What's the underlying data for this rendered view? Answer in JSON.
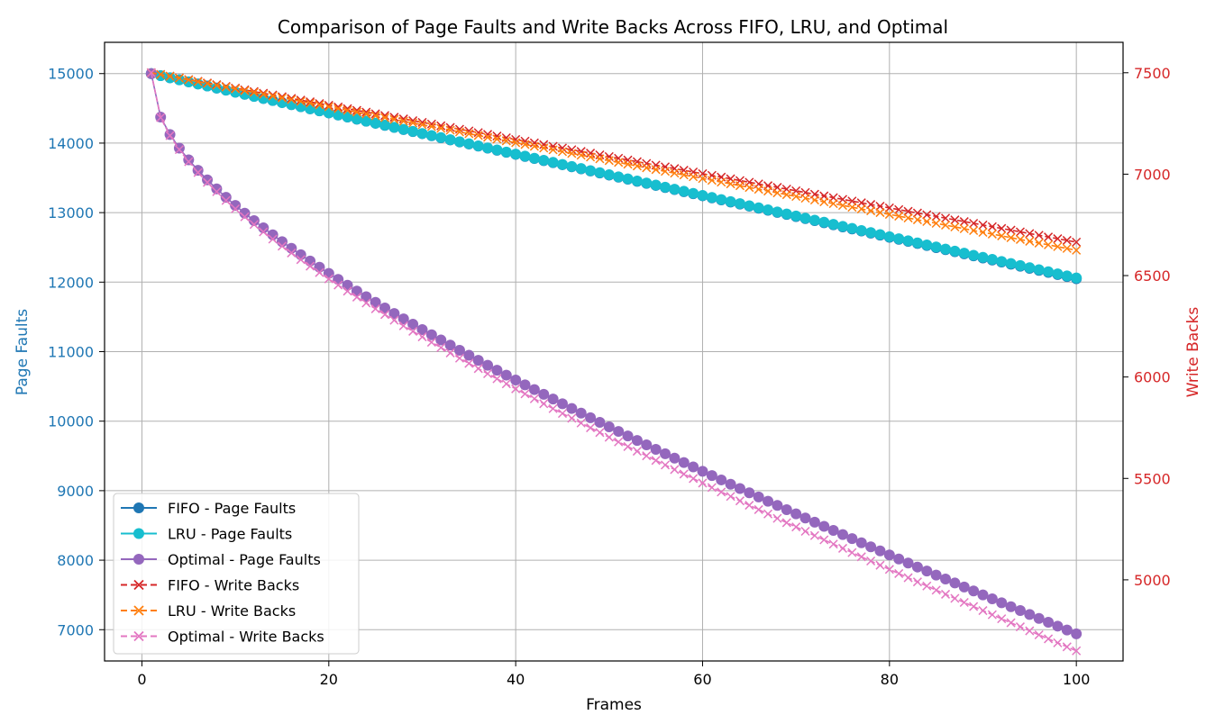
{
  "chart_data": {
    "type": "line",
    "title": "Comparison of Page Faults and Write Backs Across FIFO, LRU, and Optimal",
    "xlabel": "Frames",
    "ylabel_left": "Page Faults",
    "ylabel_right": "Write Backs",
    "xlim": [
      -4,
      105
    ],
    "ylim_left": [
      6550,
      15450
    ],
    "ylim_right": [
      4600,
      7650
    ],
    "x_ticks": [
      0,
      20,
      40,
      60,
      80,
      100
    ],
    "y_left_ticks": [
      7000,
      8000,
      9000,
      10000,
      11000,
      12000,
      13000,
      14000,
      15000
    ],
    "y_right_ticks": [
      5000,
      5500,
      6000,
      6500,
      7000,
      7500
    ],
    "grid": true,
    "legend_position": "lower-left",
    "x_range": [
      1,
      100
    ],
    "colors": {
      "left_axis": "#1f77b4",
      "right_axis": "#d62728"
    },
    "series": [
      {
        "name": "FIFO - Page Faults",
        "axis": "left",
        "color": "#1f77b4",
        "marker": "circle",
        "linestyle": "solid",
        "x_start": 1,
        "x_end": 100,
        "y_start": 15000,
        "y_end": 12050,
        "shape": "linear"
      },
      {
        "name": "LRU - Page Faults",
        "axis": "left",
        "color": "#17becf",
        "marker": "circle",
        "linestyle": "solid",
        "x_start": 1,
        "x_end": 100,
        "y_start": 15000,
        "y_end": 12060,
        "shape": "linear"
      },
      {
        "name": "Optimal - Page Faults",
        "axis": "left",
        "color": "#9467bd",
        "marker": "circle",
        "linestyle": "solid",
        "x_start": 1,
        "x_end": 100,
        "y_start": 15000,
        "y_end": 6940,
        "shape": "concave"
      },
      {
        "name": "FIFO - Write Backs",
        "axis": "right",
        "color": "#d62728",
        "marker": "x",
        "linestyle": "dashed",
        "x_start": 1,
        "x_end": 100,
        "y_start": 7500,
        "y_end": 6665,
        "shape": "linear"
      },
      {
        "name": "LRU - Write Backs",
        "axis": "right",
        "color": "#ff7f0e",
        "marker": "x",
        "linestyle": "dashed",
        "x_start": 1,
        "x_end": 100,
        "y_start": 7500,
        "y_end": 6625,
        "shape": "linear"
      },
      {
        "name": "Optimal - Write Backs",
        "axis": "right",
        "color": "#e377c2",
        "marker": "x",
        "linestyle": "dashed",
        "x_start": 1,
        "x_end": 100,
        "y_start": 7500,
        "y_end": 4650,
        "shape": "concave"
      }
    ]
  }
}
